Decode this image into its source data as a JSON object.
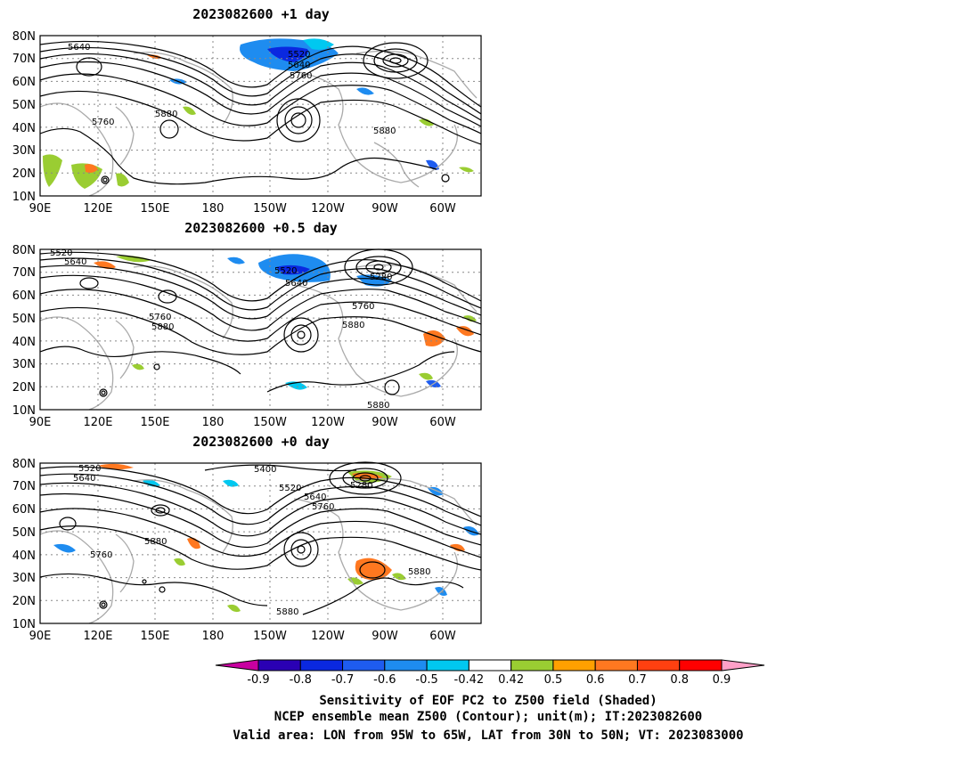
{
  "panels": [
    {
      "title": "2023082600  +1 day",
      "contour_labels": [
        "5640",
        "5520",
        "5640",
        "5760",
        "5760",
        "5880",
        "5880"
      ]
    },
    {
      "title": "2023082600  +0.5 day",
      "contour_labels": [
        "5520",
        "5640",
        "5520",
        "5640",
        "5280",
        "5760",
        "5880",
        "5760",
        "5880",
        "5880"
      ]
    },
    {
      "title": "2023082600  +0 day",
      "contour_labels": [
        "5520",
        "5640",
        "5400",
        "5520",
        "5640",
        "5280",
        "5760",
        "5880",
        "5760",
        "5880",
        "5880"
      ]
    }
  ],
  "lat_labels": [
    "80N",
    "70N",
    "60N",
    "50N",
    "40N",
    "30N",
    "20N",
    "10N"
  ],
  "lon_labels": [
    "90E",
    "120E",
    "150E",
    "180",
    "150W",
    "120W",
    "90W",
    "60W"
  ],
  "colorbar": {
    "labels": [
      "-0.9",
      "-0.8",
      "-0.7",
      "-0.6",
      "-0.5",
      "-0.42",
      "0.42",
      "0.5",
      "0.6",
      "0.7",
      "0.8",
      "0.9"
    ],
    "colors": [
      "#2a00b4",
      "#0a28e0",
      "#1e5cf0",
      "#1e8cf0",
      "#00c8f0",
      "#ffffff",
      "#9acd32",
      "#ffa000",
      "#ff7820",
      "#ff4010",
      "#ff0000"
    ],
    "low_end_color": "#c800a0",
    "high_end_color": "#ffa0c8"
  },
  "caption": {
    "line1": "Sensitivity of EOF PC2 to Z500 field (Shaded)",
    "line2": "NCEP ensemble mean Z500 (Contour); unit(m); IT:2023082600",
    "line3": "Valid area: LON from 95W to 65W, LAT from 30N to 50N; VT: 2023083000"
  }
}
